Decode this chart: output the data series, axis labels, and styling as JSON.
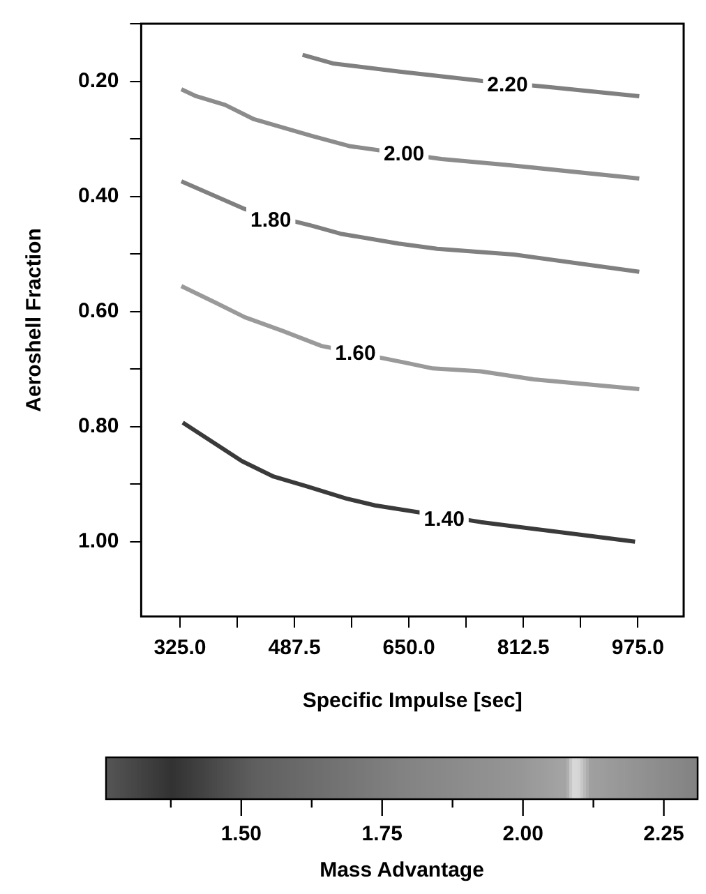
{
  "chart_data": {
    "type": "line",
    "xlabel": "Specific Impulse [sec]",
    "ylabel": "Aeroshell Fraction",
    "clabel": "Mass Advantage",
    "xlim": [
      270,
      1040
    ],
    "xticks": [
      {
        "value": 325,
        "label": "325.0"
      },
      {
        "value": 406.25,
        "label": null
      },
      {
        "value": 487.5,
        "label": "487.5"
      },
      {
        "value": 568.75,
        "label": null
      },
      {
        "value": 650,
        "label": "650.0"
      },
      {
        "value": 731.25,
        "label": null
      },
      {
        "value": 812.5,
        "label": "812.5"
      },
      {
        "value": 893.75,
        "label": null
      },
      {
        "value": 975,
        "label": "975.0"
      }
    ],
    "ylim": [
      1.13,
      0.1
    ],
    "yticks": [
      {
        "value": 0.1,
        "label": null
      },
      {
        "value": 0.2,
        "label": "0.20"
      },
      {
        "value": 0.3,
        "label": null
      },
      {
        "value": 0.4,
        "label": "0.40"
      },
      {
        "value": 0.5,
        "label": null
      },
      {
        "value": 0.6,
        "label": "0.60"
      },
      {
        "value": 0.7,
        "label": null
      },
      {
        "value": 0.8,
        "label": "0.80"
      },
      {
        "value": 0.9,
        "label": null
      },
      {
        "value": 1.0,
        "label": "1.00"
      }
    ],
    "clim": [
      1.26,
      2.31
    ],
    "cticks": [
      {
        "value": 1.375,
        "label": null
      },
      {
        "value": 1.5,
        "label": "1.50"
      },
      {
        "value": 1.625,
        "label": null
      },
      {
        "value": 1.75,
        "label": "1.75"
      },
      {
        "value": 1.875,
        "label": null
      },
      {
        "value": 2.0,
        "label": "2.00"
      },
      {
        "value": 2.125,
        "label": null
      },
      {
        "value": 2.25,
        "label": "2.25"
      }
    ],
    "grid": false,
    "legend": false,
    "marker": "none",
    "line_style": "solid",
    "series": [
      {
        "color": "#808080",
        "x": [
          499,
          542,
          635,
          758,
          848,
          977
        ],
        "values": [
          0.154,
          0.169,
          0.183,
          0.2,
          0.21,
          0.226
        ]
      },
      {
        "color": "#8c8c8c",
        "x": [
          327,
          348,
          389,
          430,
          512,
          567,
          696,
          786,
          977
        ],
        "values": [
          0.214,
          0.226,
          0.241,
          0.266,
          0.295,
          0.313,
          0.335,
          0.345,
          0.369
        ]
      },
      {
        "color": "#808080",
        "x": [
          327,
          417,
          512,
          553,
          635,
          690,
          799,
          977
        ],
        "values": [
          0.374,
          0.422,
          0.451,
          0.465,
          0.482,
          0.491,
          0.501,
          0.531
        ]
      },
      {
        "color": "#9a9a9a",
        "x": [
          327,
          376,
          417,
          471,
          526,
          645,
          684,
          752,
          827,
          977
        ],
        "values": [
          0.556,
          0.585,
          0.61,
          0.634,
          0.66,
          0.689,
          0.699,
          0.704,
          0.718,
          0.735
        ]
      },
      {
        "color": "#3a3a3a",
        "x": [
          329,
          413,
          458,
          505,
          561,
          602,
          752,
          971
        ],
        "values": [
          0.793,
          0.86,
          0.887,
          0.904,
          0.925,
          0.937,
          0.966,
          1.0
        ]
      }
    ],
    "annotations": [
      {
        "text": "2.20",
        "x": 790,
        "y": 0.205
      },
      {
        "text": "2.00",
        "x": 643,
        "y": 0.325
      },
      {
        "text": "1.80",
        "x": 454,
        "y": 0.44
      },
      {
        "text": "1.60",
        "x": 574,
        "y": 0.672
      },
      {
        "text": "1.40",
        "x": 700,
        "y": 0.96
      }
    ]
  }
}
